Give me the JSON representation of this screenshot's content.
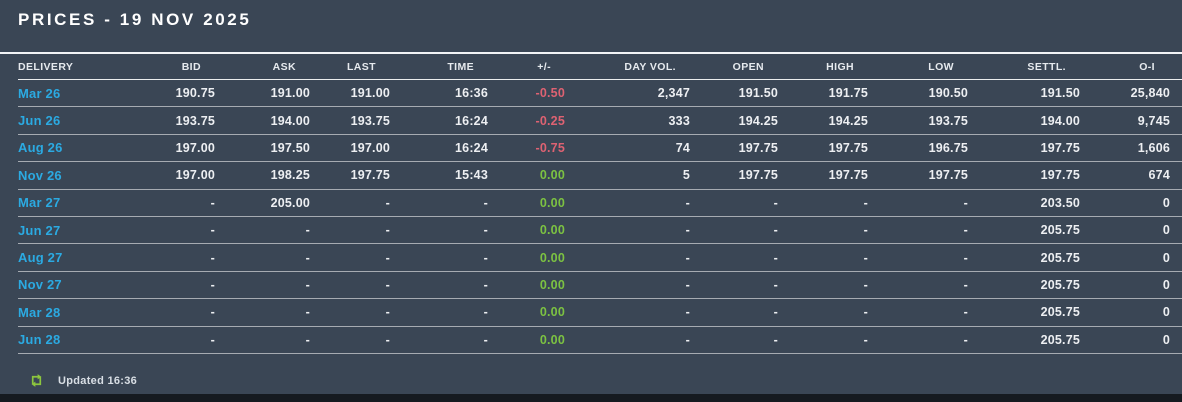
{
  "title": "PRICES - 19 NOV 2025",
  "colors": {
    "background": "#3a4655",
    "accent_link": "#2baae2",
    "negative": "#de6272",
    "flat_zero": "#7cc242",
    "header_text": "#e6eaee",
    "data_text": "#edeff2",
    "bottom_bar": "#151a20",
    "icon_green": "#8cc63e"
  },
  "table": {
    "columns": [
      {
        "key": "delivery",
        "label": "DELIVERY"
      },
      {
        "key": "bid",
        "label": "BID"
      },
      {
        "key": "ask",
        "label": "ASK"
      },
      {
        "key": "last",
        "label": "LAST"
      },
      {
        "key": "time",
        "label": "TIME"
      },
      {
        "key": "change",
        "label": "+/-"
      },
      {
        "key": "day_vol",
        "label": "DAY VOL."
      },
      {
        "key": "open",
        "label": "OPEN"
      },
      {
        "key": "high",
        "label": "HIGH"
      },
      {
        "key": "low",
        "label": "LOW"
      },
      {
        "key": "settl",
        "label": "SETTL."
      },
      {
        "key": "oi",
        "label": "O-I"
      }
    ],
    "rows": [
      {
        "delivery": "Mar 26",
        "bid": "190.75",
        "ask": "191.00",
        "last": "191.00",
        "time": "16:36",
        "change": "-0.50",
        "change_state": "down",
        "day_vol": "2,347",
        "open": "191.50",
        "high": "191.75",
        "low": "190.50",
        "settl": "191.50",
        "oi": "25,840"
      },
      {
        "delivery": "Jun 26",
        "bid": "193.75",
        "ask": "194.00",
        "last": "193.75",
        "time": "16:24",
        "change": "-0.25",
        "change_state": "down",
        "day_vol": "333",
        "open": "194.25",
        "high": "194.25",
        "low": "193.75",
        "settl": "194.00",
        "oi": "9,745"
      },
      {
        "delivery": "Aug 26",
        "bid": "197.00",
        "ask": "197.50",
        "last": "197.00",
        "time": "16:24",
        "change": "-0.75",
        "change_state": "down",
        "day_vol": "74",
        "open": "197.75",
        "high": "197.75",
        "low": "196.75",
        "settl": "197.75",
        "oi": "1,606"
      },
      {
        "delivery": "Nov 26",
        "bid": "197.00",
        "ask": "198.25",
        "last": "197.75",
        "time": "15:43",
        "change": "0.00",
        "change_state": "flat",
        "day_vol": "5",
        "open": "197.75",
        "high": "197.75",
        "low": "197.75",
        "settl": "197.75",
        "oi": "674"
      },
      {
        "delivery": "Mar 27",
        "bid": "-",
        "ask": "205.00",
        "last": "-",
        "time": "-",
        "change": "0.00",
        "change_state": "flat",
        "day_vol": "-",
        "open": "-",
        "high": "-",
        "low": "-",
        "settl": "203.50",
        "oi": "0"
      },
      {
        "delivery": "Jun 27",
        "bid": "-",
        "ask": "-",
        "last": "-",
        "time": "-",
        "change": "0.00",
        "change_state": "flat",
        "day_vol": "-",
        "open": "-",
        "high": "-",
        "low": "-",
        "settl": "205.75",
        "oi": "0"
      },
      {
        "delivery": "Aug 27",
        "bid": "-",
        "ask": "-",
        "last": "-",
        "time": "-",
        "change": "0.00",
        "change_state": "flat",
        "day_vol": "-",
        "open": "-",
        "high": "-",
        "low": "-",
        "settl": "205.75",
        "oi": "0"
      },
      {
        "delivery": "Nov 27",
        "bid": "-",
        "ask": "-",
        "last": "-",
        "time": "-",
        "change": "0.00",
        "change_state": "flat",
        "day_vol": "-",
        "open": "-",
        "high": "-",
        "low": "-",
        "settl": "205.75",
        "oi": "0"
      },
      {
        "delivery": "Mar 28",
        "bid": "-",
        "ask": "-",
        "last": "-",
        "time": "-",
        "change": "0.00",
        "change_state": "flat",
        "day_vol": "-",
        "open": "-",
        "high": "-",
        "low": "-",
        "settl": "205.75",
        "oi": "0"
      },
      {
        "delivery": "Jun 28",
        "bid": "-",
        "ask": "-",
        "last": "-",
        "time": "-",
        "change": "0.00",
        "change_state": "flat",
        "day_vol": "-",
        "open": "-",
        "high": "-",
        "low": "-",
        "settl": "205.75",
        "oi": "0"
      }
    ]
  },
  "footer": {
    "updated": "Updated 16:36",
    "refresh_icon": "refresh-repeat-icon"
  }
}
